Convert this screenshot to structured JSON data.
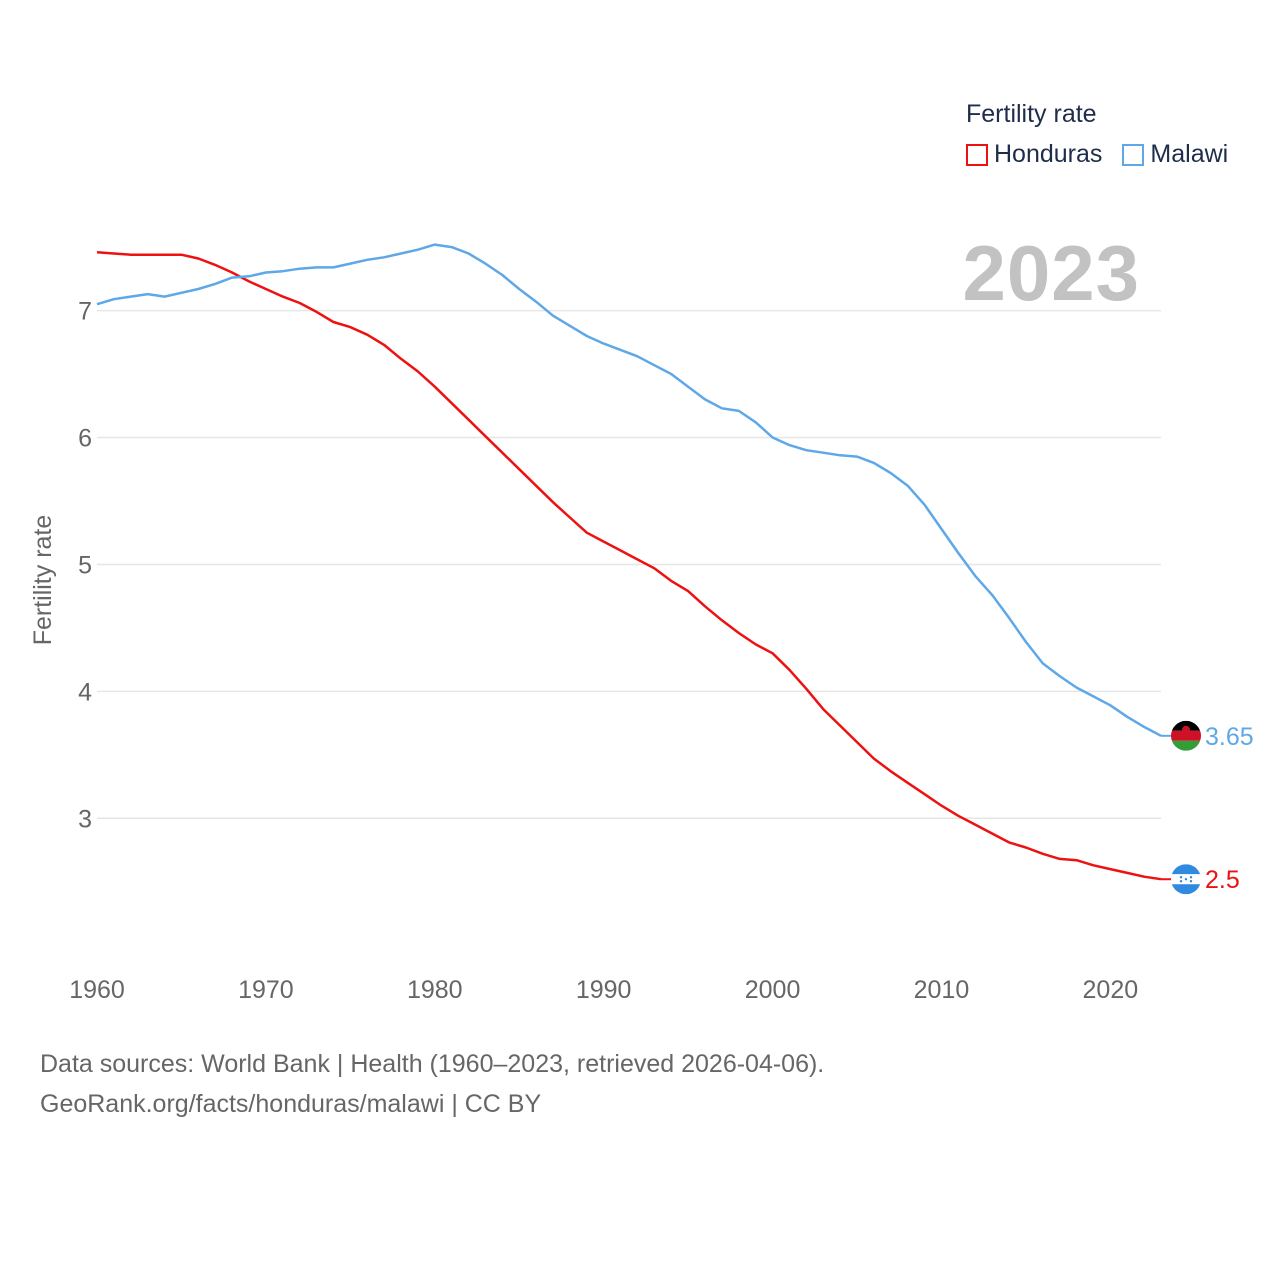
{
  "chart_data": {
    "type": "line",
    "title": "",
    "legend_title": "Fertility rate",
    "legend_position": "top-right",
    "ylabel": "Fertility rate",
    "xlabel": "",
    "year_label": "2023",
    "xlim": [
      1960,
      2023
    ],
    "ylim": [
      2.12,
      7.95
    ],
    "y_ticks": [
      3,
      4,
      5,
      6,
      7
    ],
    "x_ticks": [
      1960,
      1970,
      1980,
      1990,
      2000,
      2010,
      2020
    ],
    "grid": true,
    "x": [
      1960,
      1961,
      1962,
      1963,
      1964,
      1965,
      1966,
      1967,
      1968,
      1969,
      1970,
      1971,
      1972,
      1973,
      1974,
      1975,
      1976,
      1977,
      1978,
      1979,
      1980,
      1981,
      1982,
      1983,
      1984,
      1985,
      1986,
      1987,
      1988,
      1989,
      1990,
      1991,
      1992,
      1993,
      1994,
      1995,
      1996,
      1997,
      1998,
      1999,
      2000,
      2001,
      2002,
      2003,
      2004,
      2005,
      2006,
      2007,
      2008,
      2009,
      2010,
      2011,
      2012,
      2013,
      2014,
      2015,
      2016,
      2017,
      2018,
      2019,
      2020,
      2021,
      2022,
      2023
    ],
    "series": [
      {
        "name": "Honduras",
        "color": "#ee1111",
        "end_label": "2.5",
        "flag": "honduras",
        "values": [
          7.46,
          7.45,
          7.44,
          7.44,
          7.44,
          7.44,
          7.41,
          7.36,
          7.3,
          7.23,
          7.17,
          7.11,
          7.06,
          6.99,
          6.91,
          6.87,
          6.81,
          6.73,
          6.62,
          6.52,
          6.4,
          6.27,
          6.14,
          6.01,
          5.88,
          5.75,
          5.62,
          5.49,
          5.37,
          5.25,
          5.18,
          5.11,
          5.04,
          4.97,
          4.87,
          4.79,
          4.67,
          4.56,
          4.46,
          4.37,
          4.3,
          4.17,
          4.02,
          3.86,
          3.73,
          3.6,
          3.47,
          3.37,
          3.28,
          3.19,
          3.1,
          3.02,
          2.95,
          2.88,
          2.81,
          2.77,
          2.72,
          2.68,
          2.67,
          2.63,
          2.6,
          2.57,
          2.54,
          2.52
        ]
      },
      {
        "name": "Malawi",
        "color": "#5ea8e8",
        "end_label": "3.65",
        "flag": "malawi",
        "values": [
          7.05,
          7.09,
          7.11,
          7.13,
          7.11,
          7.14,
          7.17,
          7.21,
          7.26,
          7.27,
          7.3,
          7.31,
          7.33,
          7.34,
          7.34,
          7.37,
          7.4,
          7.42,
          7.45,
          7.48,
          7.52,
          7.5,
          7.45,
          7.37,
          7.28,
          7.17,
          7.07,
          6.96,
          6.88,
          6.8,
          6.74,
          6.69,
          6.64,
          6.57,
          6.5,
          6.4,
          6.3,
          6.23,
          6.21,
          6.12,
          6.0,
          5.94,
          5.9,
          5.88,
          5.86,
          5.85,
          5.8,
          5.72,
          5.62,
          5.47,
          5.28,
          5.09,
          4.91,
          4.76,
          4.58,
          4.39,
          4.22,
          4.12,
          4.03,
          3.96,
          3.89,
          3.8,
          3.72,
          3.65
        ]
      }
    ]
  },
  "source": {
    "line1": "Data sources: World Bank | Health (1960–2023, retrieved 2026-04-06).",
    "line2": "GeoRank.org/facts/honduras/malawi | CC BY"
  }
}
